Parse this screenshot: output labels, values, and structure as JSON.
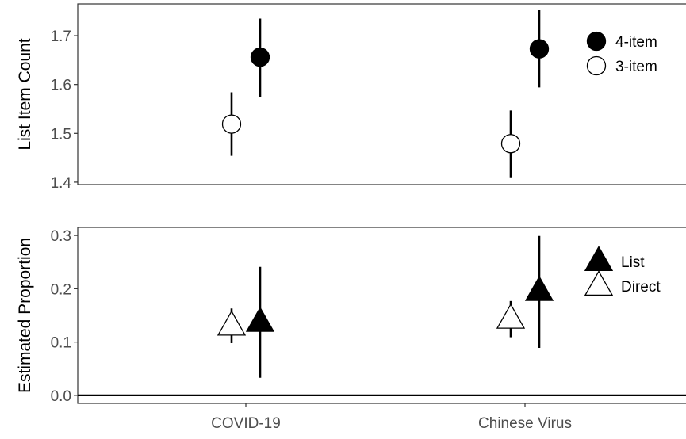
{
  "chart_data": [
    {
      "type": "scatter",
      "panel": "top",
      "ylabel": "List Item Count",
      "ylim": [
        1.395,
        1.765
      ],
      "yticks": [
        1.4,
        1.5,
        1.6,
        1.7
      ],
      "ytick_labels": [
        "1.4",
        "1.5",
        "1.6",
        "1.7"
      ],
      "categories": [
        "COVID-19",
        "Chinese Virus"
      ],
      "series": [
        {
          "name": "4-item",
          "marker": "filled-circle",
          "points": [
            {
              "category": "COVID-19",
              "y": 1.656,
              "lower": 1.575,
              "upper": 1.735
            },
            {
              "category": "Chinese Virus",
              "y": 1.673,
              "lower": 1.594,
              "upper": 1.752
            }
          ]
        },
        {
          "name": "3-item",
          "marker": "open-circle",
          "points": [
            {
              "category": "COVID-19",
              "y": 1.519,
              "lower": 1.454,
              "upper": 1.584
            },
            {
              "category": "Chinese Virus",
              "y": 1.479,
              "lower": 1.41,
              "upper": 1.547
            }
          ]
        }
      ],
      "legend_position": "right",
      "grid": false
    },
    {
      "type": "scatter",
      "panel": "bottom",
      "ylabel": "Estimated Proportion",
      "ylim": [
        -0.015,
        0.315
      ],
      "yticks": [
        0.0,
        0.1,
        0.2,
        0.3
      ],
      "ytick_labels": [
        "0.0",
        "0.1",
        "0.2",
        "0.3"
      ],
      "xlabel": "",
      "categories": [
        "COVID-19",
        "Chinese Virus"
      ],
      "series": [
        {
          "name": "List",
          "marker": "filled-triangle",
          "points": [
            {
              "category": "COVID-19",
              "y": 0.137,
              "lower": 0.033,
              "upper": 0.241
            },
            {
              "category": "Chinese Virus",
              "y": 0.195,
              "lower": 0.089,
              "upper": 0.299
            }
          ]
        },
        {
          "name": "Direct",
          "marker": "open-triangle",
          "points": [
            {
              "category": "COVID-19",
              "y": 0.13,
              "lower": 0.098,
              "upper": 0.163
            },
            {
              "category": "Chinese Virus",
              "y": 0.143,
              "lower": 0.109,
              "upper": 0.177
            }
          ]
        }
      ],
      "reference_line": 0,
      "legend_position": "right",
      "grid": false
    }
  ]
}
